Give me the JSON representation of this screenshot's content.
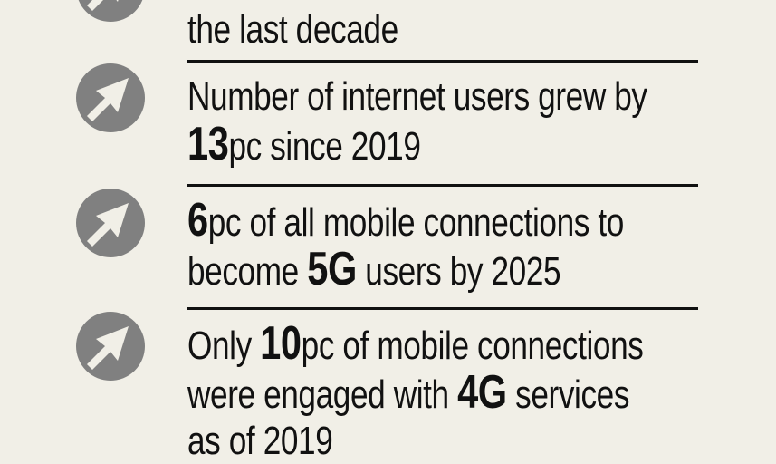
{
  "items": [
    {
      "lines": [
        [
          "the last decade"
        ]
      ],
      "icon": "arrow-up-right-icon"
    },
    {
      "lines": [
        [
          "Number of internet users grew by"
        ],
        [
          "13",
          "pc since 2019"
        ]
      ],
      "icon": "arrow-up-right-icon"
    },
    {
      "lines": [
        [
          "6",
          "pc of all mobile connections to"
        ],
        [
          "become ",
          "5G",
          " users by 2025"
        ]
      ],
      "icon": "arrow-up-right-icon"
    },
    {
      "lines": [
        [
          "Only ",
          "10",
          "pc of mobile connections"
        ],
        [
          "were engaged with ",
          "4G",
          " services"
        ],
        [
          "as of 2019"
        ]
      ],
      "icon": "arrow-up-right-icon"
    }
  ],
  "colors": {
    "background": "#f1efe7",
    "icon": "#808080",
    "text": "#111111"
  }
}
